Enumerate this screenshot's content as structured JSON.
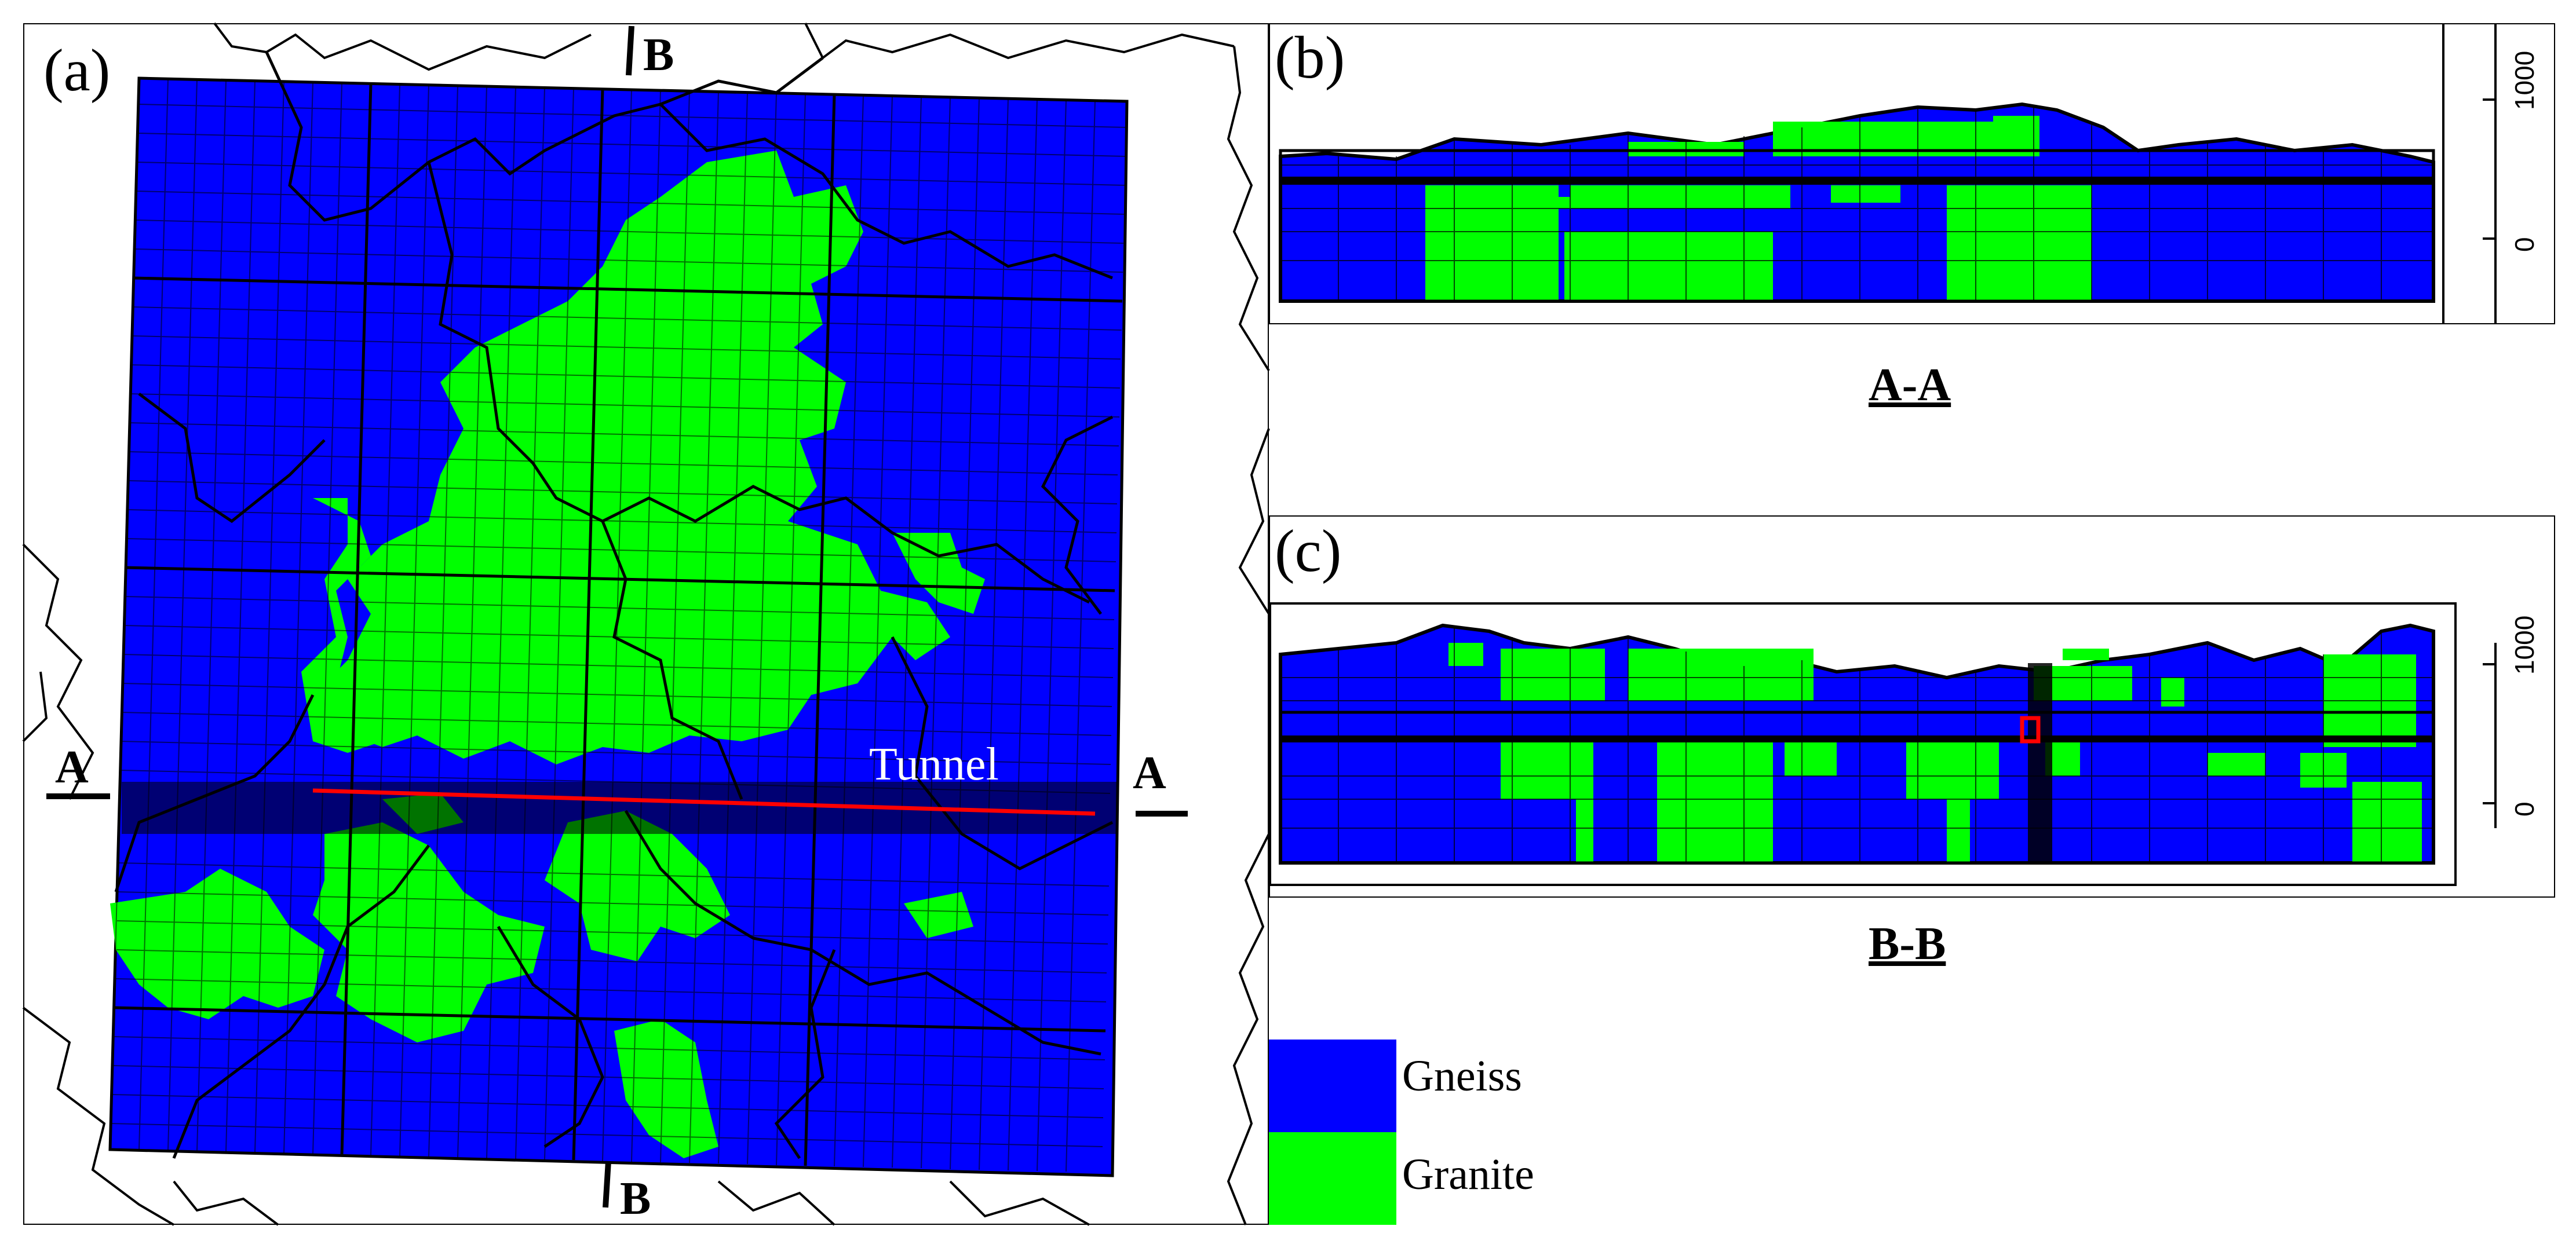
{
  "panels": {
    "a": {
      "letter": "(a)"
    },
    "b": {
      "letter": "(b)",
      "title": "A-A",
      "ticks": [
        "1000",
        "0"
      ]
    },
    "c": {
      "letter": "(c)",
      "title": "B-B",
      "ticks": [
        "1000",
        "0"
      ]
    }
  },
  "section_marks": {
    "a_left": "A",
    "a_right": "A",
    "b_top": "B",
    "b_bottom": "B"
  },
  "tunnel_label": "Tunnel",
  "legend": [
    {
      "label": "Gneiss",
      "color": "#0000ff"
    },
    {
      "label": "Granite",
      "color": "#00ff00"
    }
  ],
  "colors": {
    "gneiss": "#0000ff",
    "granite": "#00ff00",
    "tunnel": "#ff0000",
    "grid": "#000000"
  }
}
